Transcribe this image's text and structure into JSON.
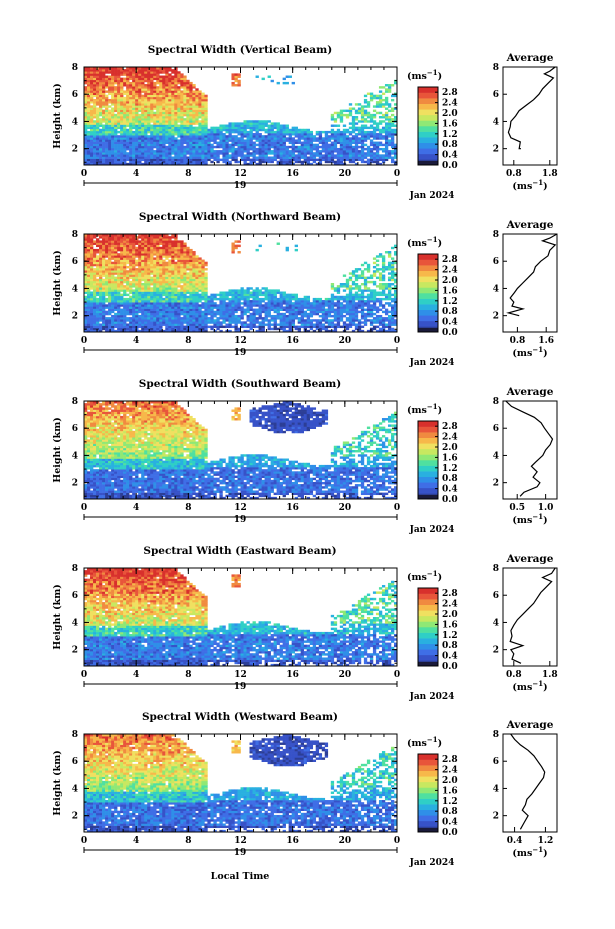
{
  "figure": {
    "xlabel": "Local Time",
    "date_label": "Jan 2024",
    "day_label": "19",
    "ylabel": "Height (km)",
    "cbar_unit": "(ms",
    "cbar_unit_exp": "−1",
    "cbar_unit_close": ")",
    "avg_title": "Average",
    "avg_unit": "(ms",
    "avg_unit_exp": "−1",
    "avg_unit_close": ")"
  },
  "colormap": [
    "#2c3e96",
    "#3752c8",
    "#3f6ee6",
    "#2f8fe8",
    "#29b0e0",
    "#2fcfc6",
    "#4fe0a0",
    "#8fe875",
    "#c8e860",
    "#f0e060",
    "#f7b84a",
    "#f08a40",
    "#e8553a",
    "#d8302c"
  ],
  "chart_data": [
    {
      "type": "heatmap",
      "title": "Spectral Width (Vertical Beam)",
      "x_range": [
        0,
        24
      ],
      "x_ticks": [
        "0",
        "4",
        "8",
        "12",
        "16",
        "20",
        "0"
      ],
      "y_range": [
        0.8,
        8
      ],
      "y_ticks": [
        "8",
        "6",
        "4",
        "2"
      ],
      "colorbar": {
        "ticks": [
          "2.8",
          "2.4",
          "2.0",
          "1.6",
          "1.2",
          "0.8",
          "0.4",
          "0.0"
        ],
        "range": [
          0,
          3
        ]
      },
      "average": {
        "x_ticks": [
          "0.8",
          "1.8"
        ],
        "x_range": [
          0.5,
          2.0
        ],
        "profile": [
          [
            2.0,
            1.0
          ],
          [
            2.0,
            0.95
          ],
          [
            2.5,
            0.98
          ],
          [
            2.8,
            0.72
          ],
          [
            3.2,
            0.65
          ],
          [
            3.6,
            0.7
          ],
          [
            4.0,
            0.72
          ],
          [
            4.4,
            0.85
          ],
          [
            4.8,
            0.95
          ],
          [
            5.2,
            1.15
          ],
          [
            5.6,
            1.35
          ],
          [
            6.0,
            1.5
          ],
          [
            6.4,
            1.6
          ],
          [
            6.8,
            1.75
          ],
          [
            7.2,
            1.9
          ],
          [
            7.5,
            1.65
          ],
          [
            7.7,
            1.8
          ],
          [
            8.0,
            1.95
          ]
        ]
      }
    },
    {
      "type": "heatmap",
      "title": "Spectral Width (Northward Beam)",
      "x_range": [
        0,
        24
      ],
      "x_ticks": [
        "0",
        "4",
        "8",
        "12",
        "16",
        "20",
        "0"
      ],
      "y_range": [
        0.8,
        8
      ],
      "y_ticks": [
        "8",
        "6",
        "4",
        "2"
      ],
      "colorbar": {
        "ticks": [
          "2.8",
          "2.4",
          "2.0",
          "1.6",
          "1.2",
          "0.8",
          "0.4",
          "0.0"
        ],
        "range": [
          0,
          3
        ]
      },
      "average": {
        "x_ticks": [
          "0.8",
          "1.6"
        ],
        "x_range": [
          0.4,
          1.9
        ],
        "profile": [
          [
            2.0,
            0.85
          ],
          [
            2.2,
            0.55
          ],
          [
            2.5,
            0.95
          ],
          [
            2.7,
            0.65
          ],
          [
            3.0,
            0.7
          ],
          [
            3.3,
            0.6
          ],
          [
            3.7,
            0.72
          ],
          [
            4.0,
            0.8
          ],
          [
            4.4,
            0.95
          ],
          [
            4.8,
            1.1
          ],
          [
            5.2,
            1.25
          ],
          [
            5.6,
            1.3
          ],
          [
            6.0,
            1.45
          ],
          [
            6.4,
            1.65
          ],
          [
            6.8,
            1.7
          ],
          [
            7.2,
            1.85
          ],
          [
            7.5,
            1.5
          ],
          [
            7.7,
            1.7
          ],
          [
            8.0,
            1.9
          ]
        ]
      }
    },
    {
      "type": "heatmap",
      "title": "Spectral Width (Southward Beam)",
      "x_range": [
        0,
        24
      ],
      "x_ticks": [
        "0",
        "4",
        "8",
        "12",
        "16",
        "20",
        "0"
      ],
      "y_range": [
        0.8,
        8
      ],
      "y_ticks": [
        "8",
        "6",
        "4",
        "2"
      ],
      "colorbar": {
        "ticks": [
          "2.8",
          "2.4",
          "2.0",
          "1.6",
          "1.2",
          "0.8",
          "0.4",
          "0.0"
        ],
        "range": [
          0,
          3
        ]
      },
      "average": {
        "x_ticks": [
          "0.5",
          "1.0"
        ],
        "x_range": [
          0.25,
          1.2
        ],
        "profile": [
          [
            1.0,
            0.55
          ],
          [
            1.3,
            0.62
          ],
          [
            1.7,
            0.85
          ],
          [
            2.0,
            0.9
          ],
          [
            2.4,
            0.78
          ],
          [
            2.8,
            0.85
          ],
          [
            3.2,
            0.75
          ],
          [
            3.5,
            0.82
          ],
          [
            4.0,
            0.95
          ],
          [
            4.4,
            1.0
          ],
          [
            4.8,
            1.08
          ],
          [
            5.2,
            1.12
          ],
          [
            5.6,
            1.05
          ],
          [
            6.0,
            0.98
          ],
          [
            6.4,
            0.92
          ],
          [
            6.8,
            0.8
          ],
          [
            7.2,
            0.6
          ],
          [
            7.6,
            0.4
          ],
          [
            8.0,
            0.3
          ]
        ]
      }
    },
    {
      "type": "heatmap",
      "title": "Spectral Width (Eastward Beam)",
      "x_range": [
        0,
        24
      ],
      "x_ticks": [
        "0",
        "4",
        "8",
        "12",
        "16",
        "20",
        "0"
      ],
      "y_range": [
        0.8,
        8
      ],
      "y_ticks": [
        "8",
        "6",
        "4",
        "2"
      ],
      "colorbar": {
        "ticks": [
          "2.8",
          "2.4",
          "2.0",
          "1.6",
          "1.2",
          "0.8",
          "0.4",
          "0.0"
        ],
        "range": [
          0,
          3
        ]
      },
      "average": {
        "x_ticks": [
          "0.8",
          "1.8"
        ],
        "x_range": [
          0.5,
          2.0
        ],
        "profile": [
          [
            1.0,
            1.0
          ],
          [
            1.3,
            0.75
          ],
          [
            1.7,
            0.8
          ],
          [
            2.0,
            0.72
          ],
          [
            2.3,
            1.05
          ],
          [
            2.6,
            0.7
          ],
          [
            3.0,
            0.75
          ],
          [
            3.4,
            0.72
          ],
          [
            3.8,
            0.8
          ],
          [
            4.2,
            0.9
          ],
          [
            4.6,
            1.05
          ],
          [
            5.0,
            1.2
          ],
          [
            5.4,
            1.35
          ],
          [
            5.8,
            1.45
          ],
          [
            6.2,
            1.55
          ],
          [
            6.6,
            1.7
          ],
          [
            7.0,
            1.85
          ],
          [
            7.3,
            1.6
          ],
          [
            7.6,
            1.85
          ],
          [
            8.0,
            1.95
          ]
        ]
      }
    },
    {
      "type": "heatmap",
      "title": "Spectral Width (Westward Beam)",
      "x_range": [
        0,
        24
      ],
      "x_ticks": [
        "0",
        "4",
        "8",
        "12",
        "16",
        "20",
        "0"
      ],
      "y_range": [
        0.8,
        8
      ],
      "y_ticks": [
        "8",
        "6",
        "4",
        "2"
      ],
      "colorbar": {
        "ticks": [
          "2.8",
          "2.4",
          "2.0",
          "1.6",
          "1.2",
          "0.8",
          "0.4",
          "0.0"
        ],
        "range": [
          0,
          3
        ]
      },
      "average": {
        "x_ticks": [
          "0.4",
          "1.2"
        ],
        "x_range": [
          0.1,
          1.5
        ],
        "profile": [
          [
            1.0,
            0.55
          ],
          [
            1.5,
            0.65
          ],
          [
            2.0,
            0.75
          ],
          [
            2.4,
            0.6
          ],
          [
            2.8,
            0.68
          ],
          [
            3.2,
            0.72
          ],
          [
            3.6,
            0.85
          ],
          [
            4.0,
            0.95
          ],
          [
            4.4,
            1.05
          ],
          [
            4.8,
            1.15
          ],
          [
            5.2,
            1.18
          ],
          [
            5.6,
            1.1
          ],
          [
            6.0,
            1.0
          ],
          [
            6.4,
            0.9
          ],
          [
            6.8,
            0.75
          ],
          [
            7.2,
            0.55
          ],
          [
            7.6,
            0.4
          ],
          [
            8.0,
            0.3
          ]
        ]
      }
    }
  ]
}
